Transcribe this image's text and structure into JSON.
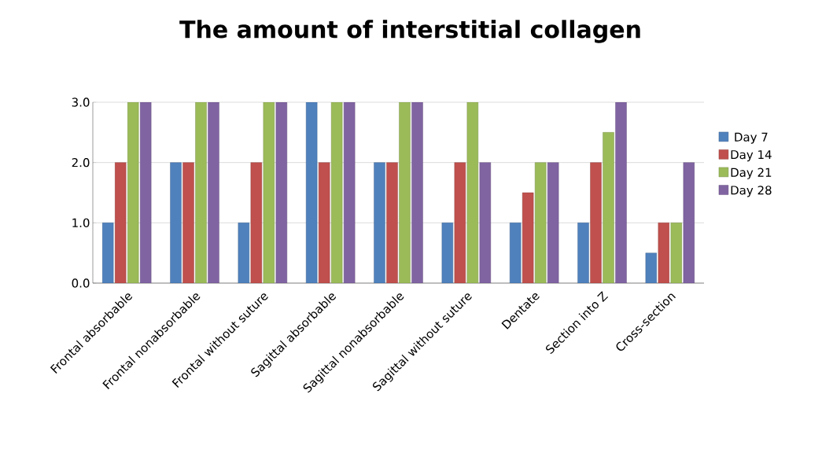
{
  "chart_data": {
    "type": "bar",
    "title": "The amount of interstitial collagen",
    "categories": [
      "Frontal absorbable",
      "Frontal nonabsorbable",
      "Frontal without suture",
      "Sagittal absorbable",
      "Sagittal nonabsorbable",
      "Sagittal without suture",
      "Dentate",
      "Section into Z",
      "Cross-section"
    ],
    "series": [
      {
        "name": "Day 7",
        "color": "#4f81bd",
        "values": [
          1,
          2,
          1,
          3,
          2,
          1,
          1,
          1,
          0.5
        ]
      },
      {
        "name": "Day 14",
        "color": "#c0504d",
        "values": [
          2,
          2,
          2,
          2,
          2,
          2,
          1.5,
          2,
          1
        ]
      },
      {
        "name": "Day 21",
        "color": "#9bbb59",
        "values": [
          3,
          3,
          3,
          3,
          3,
          3,
          2,
          2.5,
          1
        ]
      },
      {
        "name": "Day 28",
        "color": "#8064a2",
        "values": [
          3,
          3,
          3,
          3,
          3,
          2,
          2,
          3,
          2
        ]
      }
    ],
    "ylim": [
      0,
      3
    ],
    "yticks": [
      {
        "value": 0,
        "label": "0.0"
      },
      {
        "value": 1,
        "label": "1.0"
      },
      {
        "value": 2,
        "label": "2.0"
      },
      {
        "value": 3,
        "label": "3.0"
      }
    ],
    "grid": "y",
    "legend": "right"
  }
}
